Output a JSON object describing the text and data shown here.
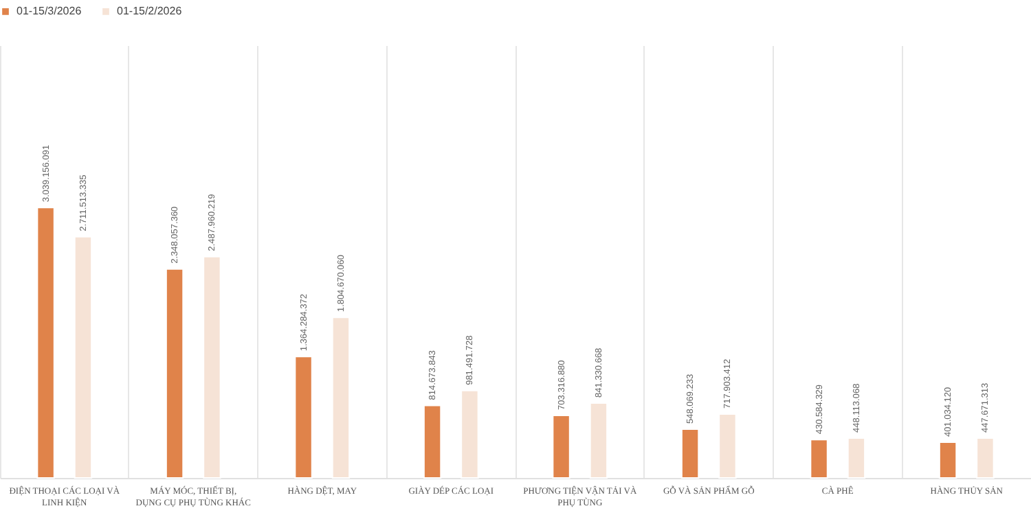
{
  "chart_data": {
    "type": "bar",
    "categories": [
      "ĐIỆN THOẠI CÁC LOẠI VÀ LINH KIỆN",
      "MÁY MÓC, THIẾT BỊ, DỤNG CỤ PHỤ TÙNG KHÁC",
      "HÀNG DỆT, MAY",
      "GIÀY DÉP CÁC LOẠI",
      "PHƯƠNG TIỆN VẬN TẢI VÀ PHỤ TÙNG",
      "GỖ VÀ SẢN PHẨM GỖ",
      "CÀ PHÊ",
      "HÀNG THỦY SẢN"
    ],
    "series": [
      {
        "name": "01-15/3/2026",
        "color": "#e0834a",
        "values": [
          3039156091,
          2348057360,
          1364284372,
          814673843,
          703316880,
          548069233,
          430584329,
          401034120
        ],
        "value_labels": [
          "3.039.156.091",
          "2.348.057.360",
          "1.364.284.372",
          "814.673.843",
          "703.316.880",
          "548.069.233",
          "430.584.329",
          "401.034.120"
        ]
      },
      {
        "name": "01-15/2/2026",
        "color": "#f6e3d6",
        "values": [
          2711513335,
          2487960219,
          1804670060,
          981491728,
          841330668,
          717903412,
          448113068,
          447671313
        ],
        "value_labels": [
          "2.711.513.335",
          "2.487.960.219",
          "1.804.670.060",
          "981.491.728",
          "841.330.668",
          "717.903.412",
          "448.113.068",
          "447.671.313"
        ]
      }
    ],
    "grid": "x",
    "legend": "top"
  }
}
